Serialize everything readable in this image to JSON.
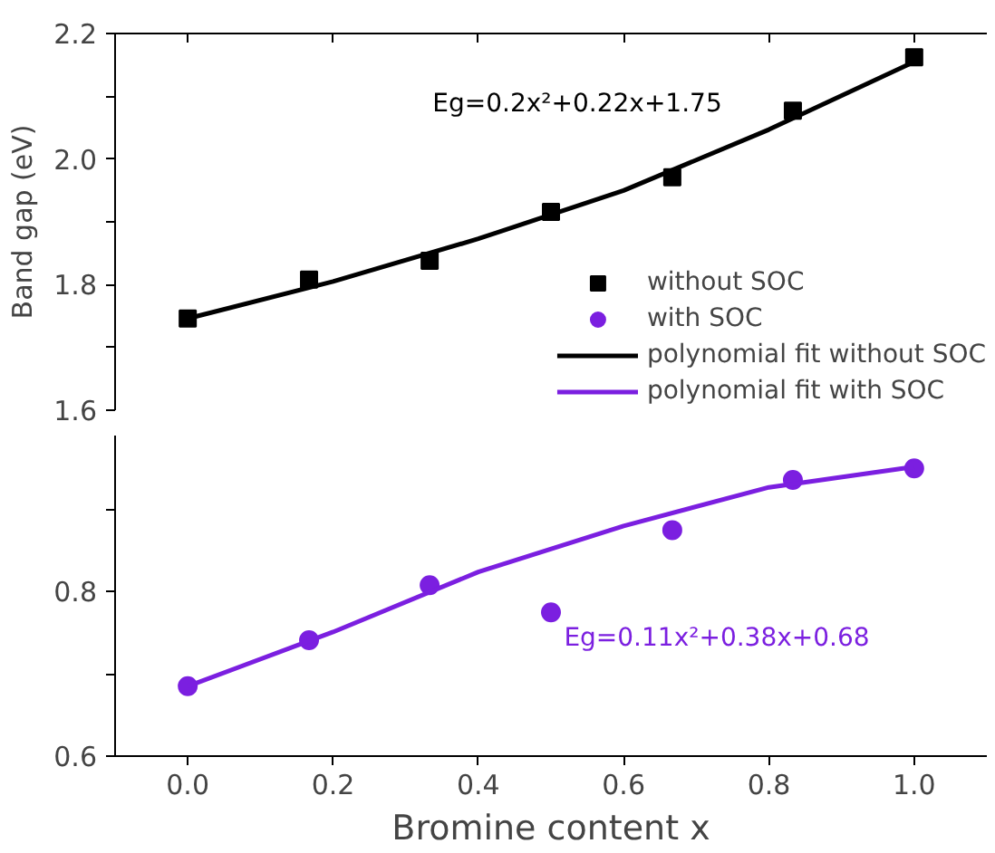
{
  "chart_data": [
    {
      "type": "scatter",
      "ylabel": "Band gap (eV)",
      "tick_labels": "y",
      "legend": "bottom right",
      "grid": false,
      "xlim": [
        -0.1,
        1.1
      ],
      "ylim": [
        1.6,
        2.2
      ],
      "xticks": [
        {
          "value": 0,
          "label": null
        },
        {
          "value": 0.2,
          "label": null
        },
        {
          "value": 0.4,
          "label": null
        },
        {
          "value": 0.6,
          "label": null
        },
        {
          "value": 0.8,
          "label": null
        },
        {
          "value": 1.0,
          "label": null
        }
      ],
      "yticks": [
        1.6,
        1.8,
        {
          "value": 2.0,
          "label": "2.0"
        },
        2.2,
        {
          "value": 1.7,
          "label": null
        },
        {
          "value": 1.9,
          "label": null
        },
        {
          "value": 2.1,
          "label": null
        }
      ],
      "annotations": [
        "Eg=0.2x²+0.22x+1.75"
      ],
      "series": [
        {
          "name": "without SOC",
          "marker": "square",
          "color": "#000000",
          "x": [
            0,
            0.167,
            0.333,
            0.5,
            0.667,
            0.833,
            1.0
          ],
          "values": [
            1.746,
            1.808,
            1.838,
            1.916,
            1.971,
            2.077,
            2.162
          ]
        },
        {
          "name": "polynomial fit without SOC",
          "type": "line",
          "line_style": "solid",
          "color": "#000000",
          "x": [
            0,
            0.2,
            0.4,
            0.6,
            0.8,
            1.0
          ],
          "values": [
            1.746,
            1.805,
            1.873,
            1.95,
            2.047,
            2.155
          ]
        }
      ]
    },
    {
      "type": "scatter",
      "xlabel": "Bromine content x",
      "grid": false,
      "legend": "top right",
      "xlim": [
        -0.1,
        1.1
      ],
      "ylim": [
        0.6,
        0.99
      ],
      "xticks": [
        {
          "value": 0,
          "label": "0.0"
        },
        0.2,
        0.4,
        0.6,
        0.8,
        {
          "value": 1.0,
          "label": "1.0"
        }
      ],
      "yticks": [
        0.6,
        0.8,
        {
          "value": 0.7,
          "label": null
        },
        {
          "value": 0.9,
          "label": null
        }
      ],
      "annotations": [
        "Eg=0.11x²+0.38x+0.68"
      ],
      "series": [
        {
          "name": "with SOC",
          "marker": "circle",
          "color": "#7b1fe0",
          "x": [
            0,
            0.167,
            0.333,
            0.5,
            0.667,
            0.833,
            1.0
          ],
          "values": [
            0.685,
            0.741,
            0.808,
            0.775,
            0.875,
            0.936,
            0.95
          ]
        },
        {
          "name": "polynomial fit with SOC",
          "type": "line",
          "line_style": "solid",
          "color": "#7b1fe0",
          "x": [
            0,
            0.2,
            0.4,
            0.6,
            0.8,
            1.0
          ],
          "values": [
            0.685,
            0.751,
            0.824,
            0.88,
            0.927,
            0.952
          ]
        }
      ]
    }
  ]
}
